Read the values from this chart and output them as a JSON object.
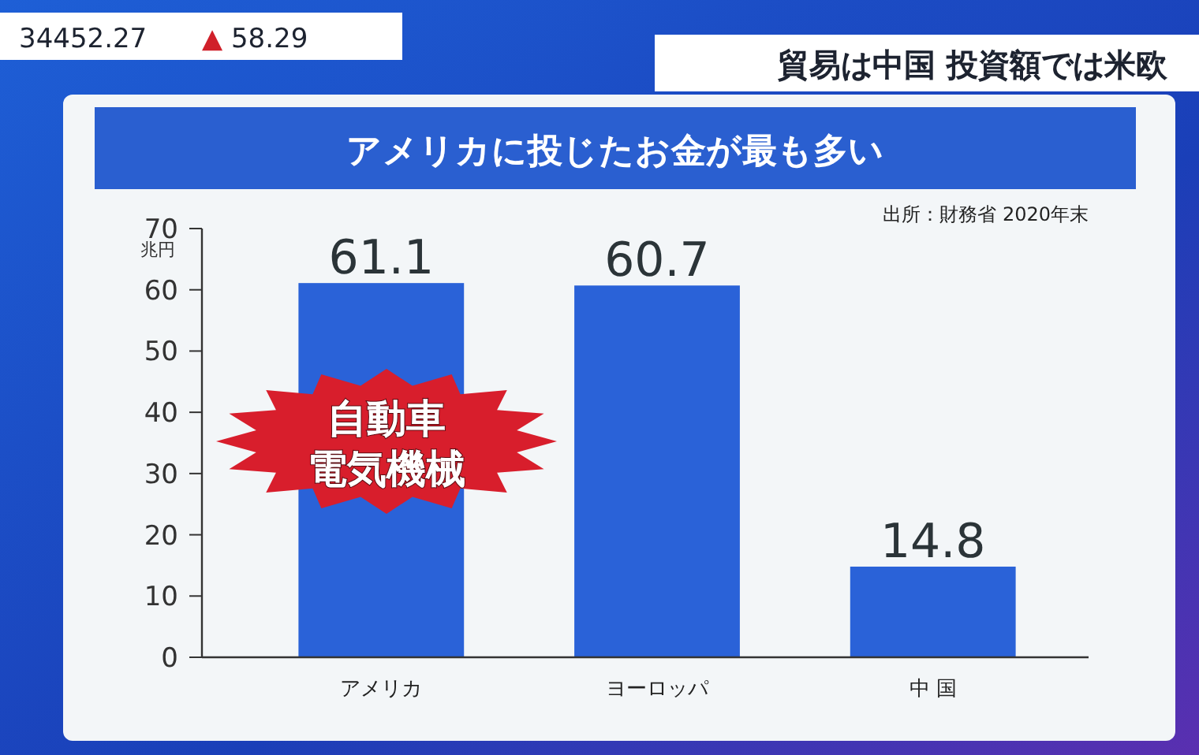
{
  "chart_data": {
    "type": "bar",
    "title": "アメリカに投じたお金が最も多い",
    "subtitle": "貿易は中国 投資額では米欧",
    "ylabel": "兆円",
    "categories": [
      "アメリカ",
      "ヨーロッパ",
      "中 国"
    ],
    "values": [
      61.1,
      60.7,
      14.8
    ],
    "color": "#2a62d8",
    "ylim": [
      0,
      70
    ],
    "yticks": [
      0,
      10,
      20,
      30,
      40,
      50,
      60,
      70
    ],
    "data_labels": true,
    "grid": false,
    "annotations": [
      "出所：財務省 2020年末",
      "34452.27",
      "▲ 58.29",
      "自動車",
      "電気機械"
    ]
  }
}
